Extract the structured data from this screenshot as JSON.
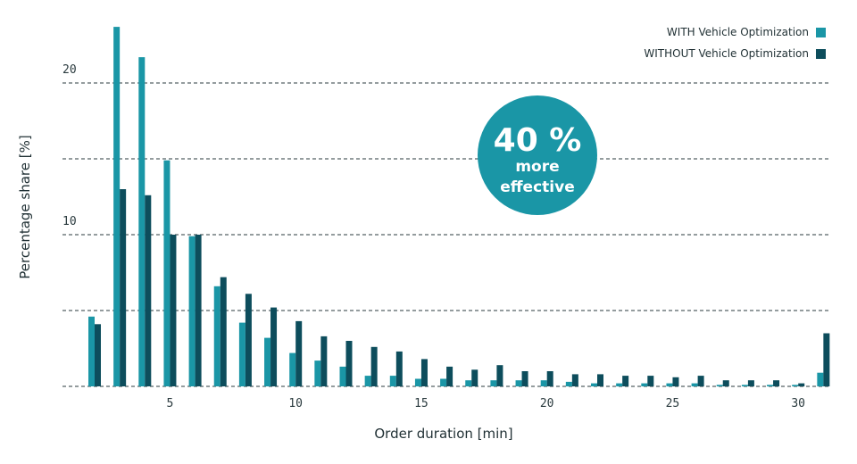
{
  "chart_data": {
    "type": "bar",
    "xlabel": "Order duration [min]",
    "ylabel": "Percentage share [%]",
    "ylim": [
      0,
      24
    ],
    "x_ticks": [
      5,
      10,
      15,
      20,
      25,
      30
    ],
    "y_ticks": [
      10,
      20
    ],
    "y_gridlines": [
      0,
      5,
      10,
      15,
      20
    ],
    "grid": "dashed horizontal",
    "legend_position": "top-right",
    "categories": [
      2,
      3,
      4,
      5,
      6,
      7,
      8,
      9,
      10,
      11,
      12,
      13,
      14,
      15,
      16,
      17,
      18,
      19,
      20,
      21,
      22,
      23,
      24,
      25,
      26,
      27,
      28,
      29,
      30,
      31
    ],
    "series": [
      {
        "name": "WITH Vehicle Optimization",
        "color": "#1a96a6",
        "values": [
          4.6,
          23.7,
          21.7,
          14.9,
          9.9,
          6.6,
          4.2,
          3.2,
          2.2,
          1.7,
          1.3,
          0.7,
          0.7,
          0.5,
          0.5,
          0.4,
          0.4,
          0.4,
          0.4,
          0.3,
          0.2,
          0.2,
          0.2,
          0.2,
          0.2,
          0.1,
          0.1,
          0.1,
          0.1,
          0.9
        ]
      },
      {
        "name": "WITHOUT Vehicle Optimization",
        "color": "#0d4d5c",
        "values": [
          4.1,
          13.0,
          12.6,
          10.0,
          10.0,
          7.2,
          6.1,
          5.2,
          4.3,
          3.3,
          3.0,
          2.6,
          2.3,
          1.8,
          1.3,
          1.1,
          1.4,
          1.0,
          1.0,
          0.8,
          0.8,
          0.7,
          0.7,
          0.6,
          0.7,
          0.4,
          0.4,
          0.4,
          0.2,
          3.5
        ]
      }
    ],
    "annotation": {
      "big": "40 %",
      "line1": "more",
      "line2": "effective",
      "color": "#1a96a6"
    }
  }
}
